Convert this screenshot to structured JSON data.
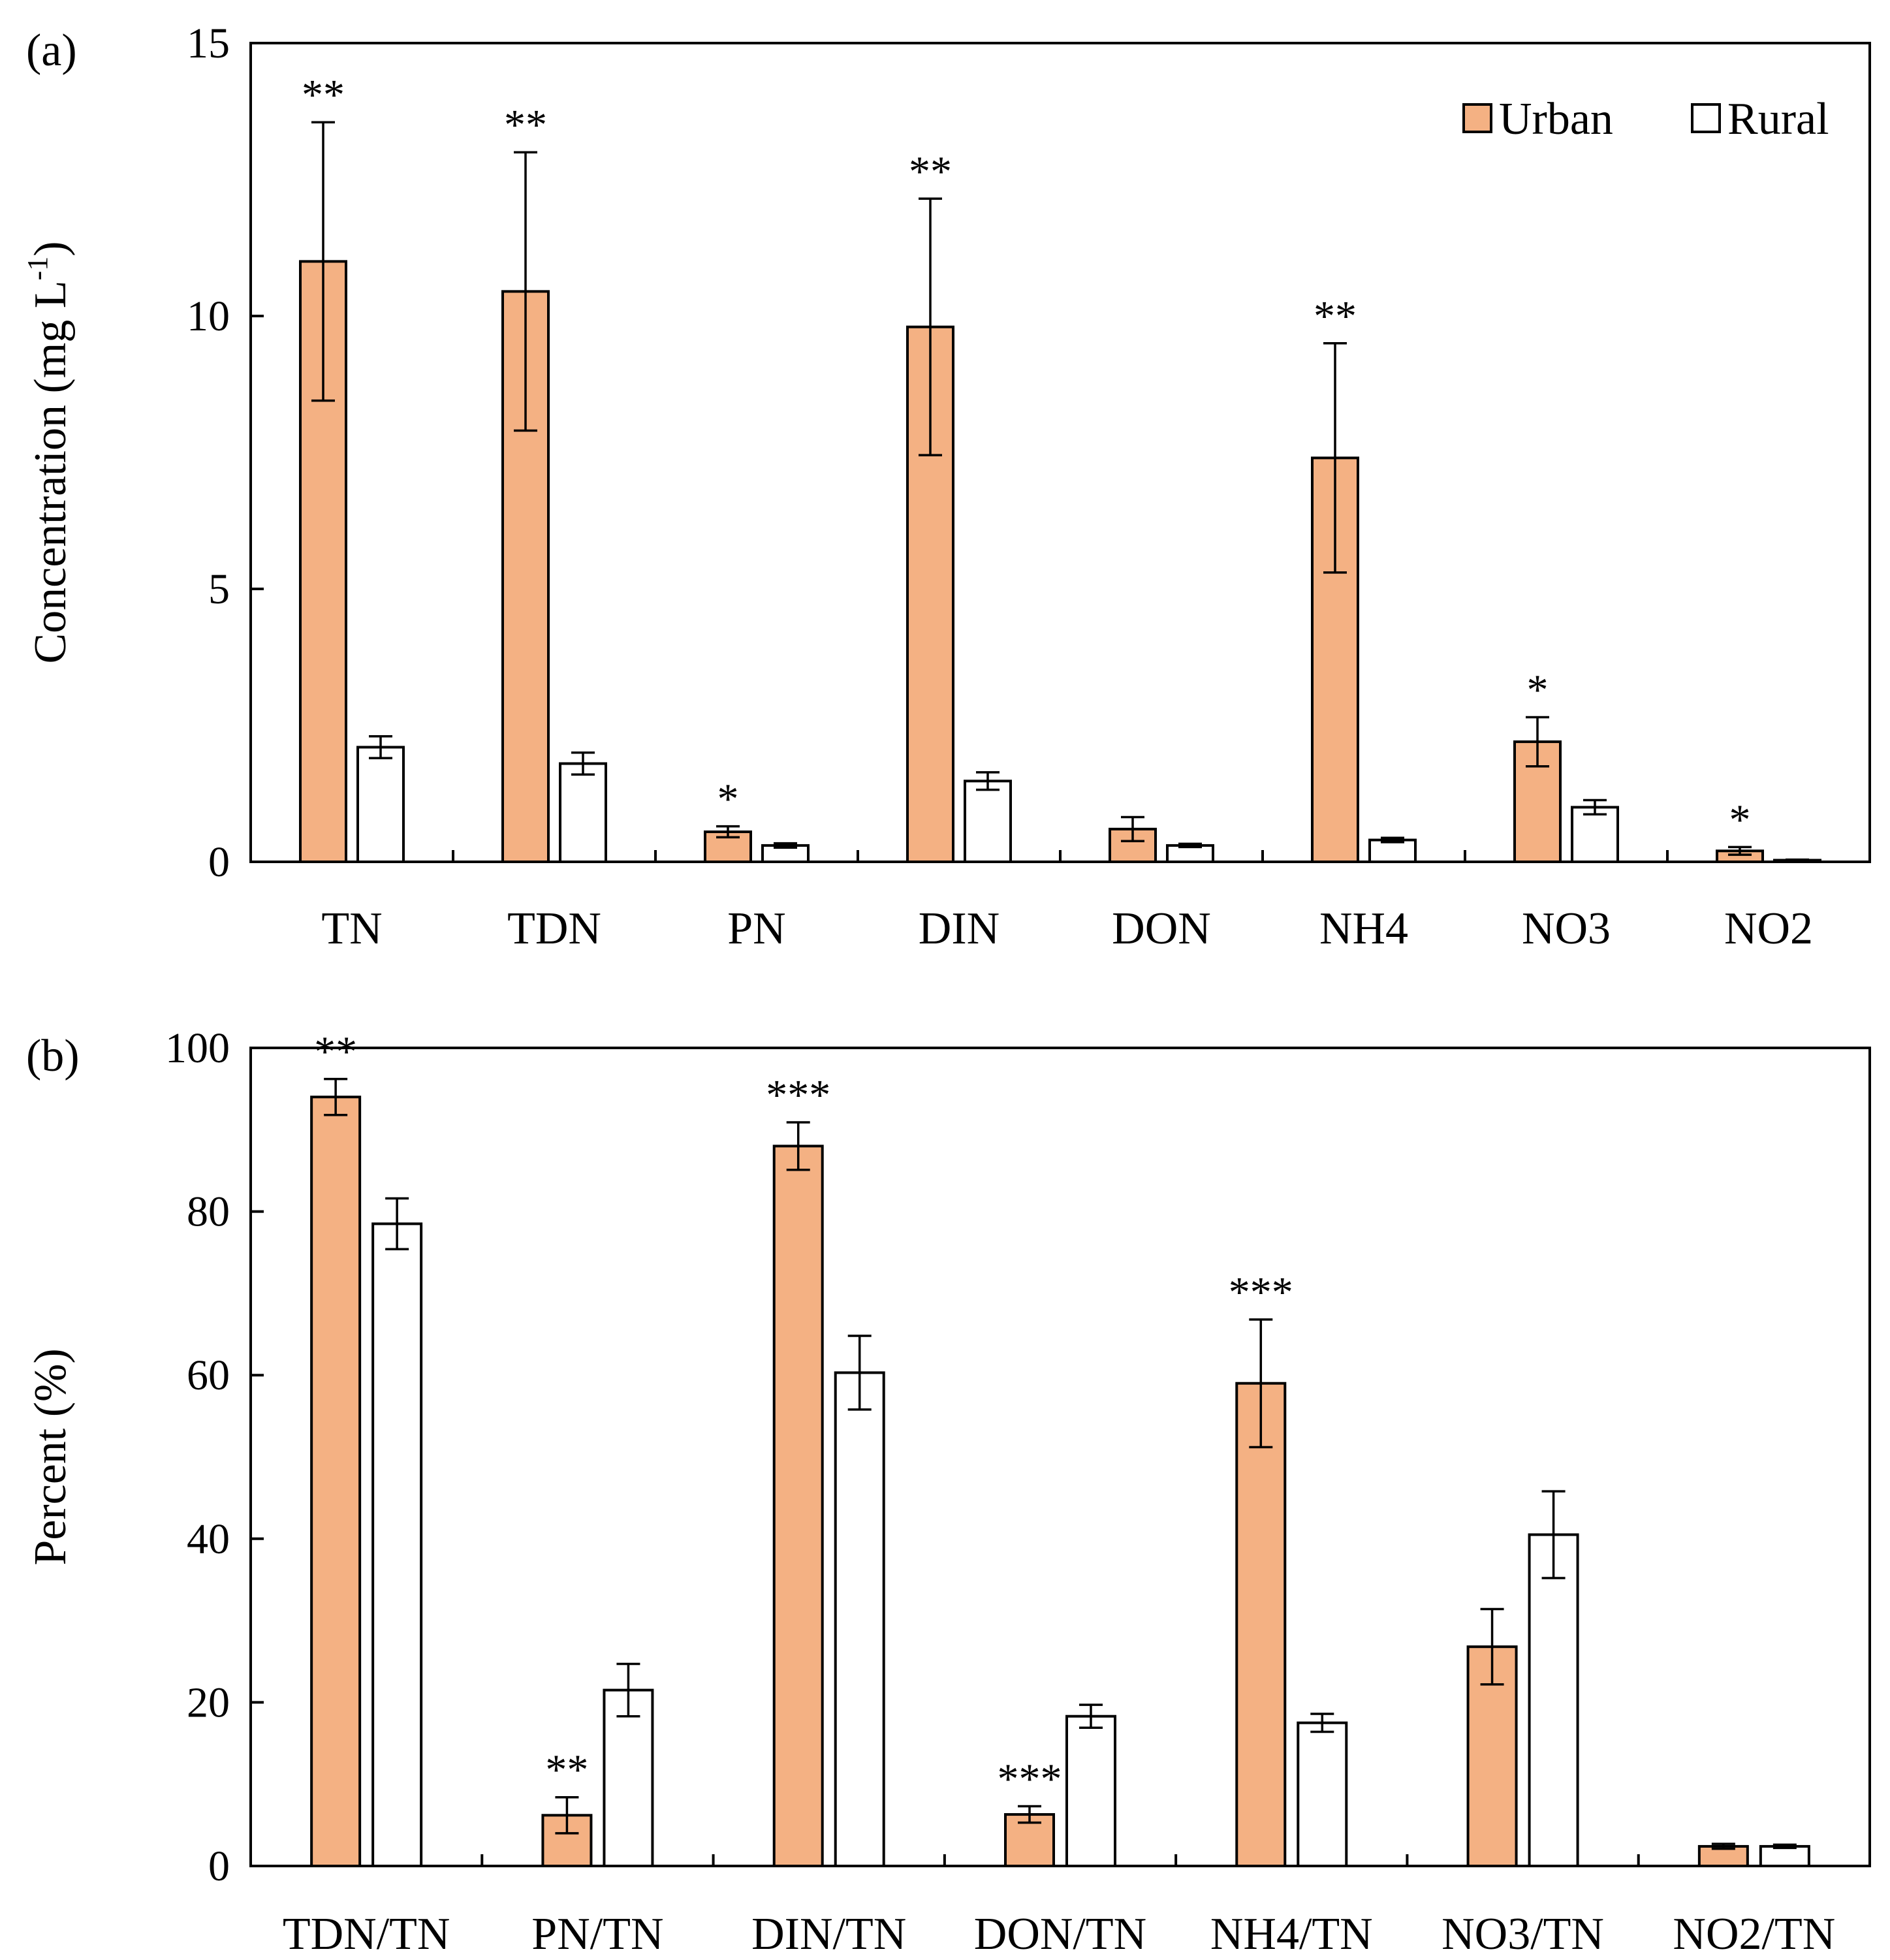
{
  "colors": {
    "urban": "#F4B183",
    "rural": "#FFFFFF",
    "stroke": "#000000"
  },
  "legend": {
    "urban_label": "Urban",
    "rural_label": "Rural",
    "placement": "top-right"
  },
  "chart_data": [
    {
      "type": "bar",
      "panel_label": "(a)",
      "ylabel_main": "Concentration (mg L",
      "ylabel_sup": "-1",
      "ylabel_end": ")",
      "ylim": [
        0,
        15
      ],
      "yticks": [
        "0",
        "5",
        "10",
        "15"
      ],
      "categories": [
        "TN",
        "TDN",
        "PN",
        "DIN",
        "DON",
        "NH4",
        "NO3",
        "NO2"
      ],
      "series": [
        {
          "name": "Urban",
          "values": [
            11.0,
            10.45,
            0.55,
            9.8,
            0.6,
            7.4,
            2.2,
            0.2
          ],
          "errors": [
            2.55,
            2.55,
            0.1,
            2.35,
            0.22,
            2.1,
            0.45,
            0.07
          ]
        },
        {
          "name": "Rural",
          "values": [
            2.1,
            1.8,
            0.3,
            1.48,
            0.3,
            0.4,
            1.0,
            0.03
          ],
          "errors": [
            0.2,
            0.2,
            0.04,
            0.16,
            0.03,
            0.04,
            0.13,
            0.01
          ]
        }
      ],
      "significance": [
        "**",
        "**",
        "*",
        "**",
        "",
        "**",
        "*",
        "*"
      ],
      "grid": false
    },
    {
      "type": "bar",
      "panel_label": "(b)",
      "ylabel_main": "Percent (%)",
      "ylabel_sup": "",
      "ylabel_end": "",
      "ylim": [
        0,
        100
      ],
      "yticks": [
        "0",
        "20",
        "40",
        "60",
        "80",
        "100"
      ],
      "categories": [
        "TDN/TN",
        "PN/TN",
        "DIN/TN",
        "DON/TN",
        "NH4/TN",
        "NO3/TN",
        "NO2/TN"
      ],
      "series": [
        {
          "name": "Urban",
          "values": [
            94.0,
            6.2,
            88.0,
            6.3,
            59.0,
            26.8,
            2.4
          ],
          "errors": [
            2.2,
            2.2,
            2.9,
            1.0,
            7.8,
            4.6,
            0.3
          ]
        },
        {
          "name": "Rural",
          "values": [
            78.5,
            21.5,
            60.3,
            18.3,
            17.5,
            40.5,
            2.4
          ],
          "errors": [
            3.1,
            3.2,
            4.5,
            1.4,
            1.1,
            5.3,
            0.2
          ]
        }
      ],
      "significance": [
        "**",
        "**",
        "***",
        "***",
        "***",
        "",
        ""
      ],
      "grid": false
    }
  ]
}
